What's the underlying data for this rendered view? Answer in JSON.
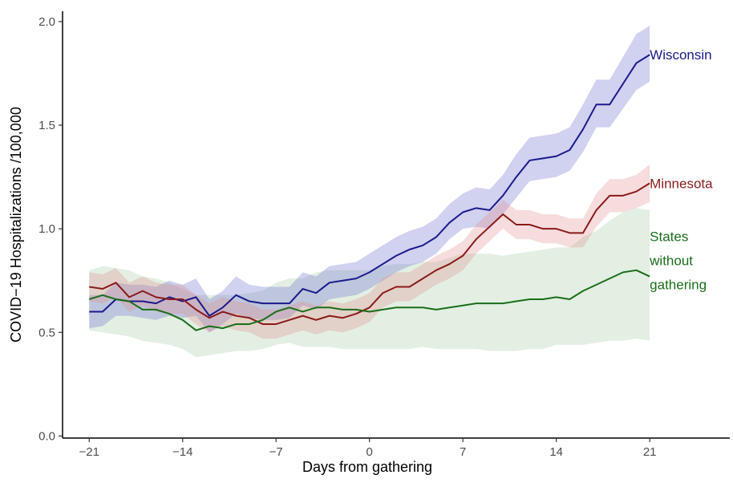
{
  "chart_data": {
    "type": "line",
    "title": "",
    "xlabel": "Days from gathering",
    "ylabel": "COVID−19 Hospitalizations /100,000",
    "xlim": [
      -23,
      27
    ],
    "ylim": [
      -0.01,
      2.05
    ],
    "x_ticks": [
      -21,
      -14,
      -7,
      0,
      7,
      14,
      21
    ],
    "x_tick_labels": [
      "−21",
      "−14",
      "−7",
      "0",
      "7",
      "14",
      "21"
    ],
    "y_ticks": [
      0.0,
      0.5,
      1.0,
      1.5,
      2.0
    ],
    "y_tick_labels": [
      "0.0",
      "0.5",
      "1.0",
      "1.5",
      "2.0"
    ],
    "grid": false,
    "legend": "direct labels at line ends",
    "x": [
      -21,
      -20,
      -19,
      -18,
      -17,
      -16,
      -15,
      -14,
      -13,
      -12,
      -11,
      -10,
      -9,
      -8,
      -7,
      -6,
      -5,
      -4,
      -3,
      -2,
      -1,
      0,
      1,
      2,
      3,
      4,
      5,
      6,
      7,
      8,
      9,
      10,
      11,
      12,
      13,
      14,
      15,
      16,
      17,
      18,
      19,
      20,
      21
    ],
    "series": [
      {
        "name": "Wisconsin",
        "color": "#1a1a8c",
        "band_color": "#6666cc",
        "values": [
          0.6,
          0.6,
          0.66,
          0.65,
          0.65,
          0.64,
          0.67,
          0.65,
          0.67,
          0.58,
          0.62,
          0.68,
          0.65,
          0.64,
          0.64,
          0.64,
          0.71,
          0.69,
          0.74,
          0.75,
          0.76,
          0.79,
          0.83,
          0.87,
          0.9,
          0.92,
          0.96,
          1.03,
          1.08,
          1.1,
          1.09,
          1.16,
          1.25,
          1.33,
          1.34,
          1.35,
          1.38,
          1.48,
          1.6,
          1.6,
          1.7,
          1.8,
          1.84
        ],
        "lower": [
          0.52,
          0.53,
          0.58,
          0.58,
          0.57,
          0.56,
          0.58,
          0.57,
          0.58,
          0.5,
          0.54,
          0.59,
          0.57,
          0.56,
          0.56,
          0.57,
          0.63,
          0.61,
          0.66,
          0.67,
          0.68,
          0.71,
          0.75,
          0.79,
          0.82,
          0.84,
          0.88,
          0.95,
          1.0,
          1.01,
          1.0,
          1.07,
          1.15,
          1.23,
          1.24,
          1.25,
          1.28,
          1.37,
          1.49,
          1.49,
          1.58,
          1.67,
          1.71
        ],
        "upper": [
          0.68,
          0.68,
          0.74,
          0.73,
          0.73,
          0.72,
          0.75,
          0.73,
          0.76,
          0.66,
          0.7,
          0.77,
          0.73,
          0.72,
          0.72,
          0.72,
          0.79,
          0.77,
          0.82,
          0.83,
          0.84,
          0.88,
          0.92,
          0.96,
          0.99,
          1.01,
          1.05,
          1.12,
          1.17,
          1.2,
          1.19,
          1.26,
          1.36,
          1.44,
          1.45,
          1.46,
          1.49,
          1.6,
          1.72,
          1.72,
          1.83,
          1.94,
          1.98
        ]
      },
      {
        "name": "Minnesota",
        "color": "#8b1a1a",
        "band_color": "#e08a8a",
        "values": [
          0.72,
          0.71,
          0.74,
          0.67,
          0.7,
          0.67,
          0.66,
          0.66,
          0.61,
          0.57,
          0.6,
          0.58,
          0.57,
          0.54,
          0.54,
          0.56,
          0.58,
          0.56,
          0.58,
          0.57,
          0.59,
          0.62,
          0.69,
          0.72,
          0.72,
          0.76,
          0.8,
          0.83,
          0.87,
          0.95,
          1.01,
          1.07,
          1.02,
          1.02,
          1.0,
          1.0,
          0.98,
          0.98,
          1.09,
          1.16,
          1.16,
          1.18,
          1.22
        ],
        "lower": [
          0.65,
          0.64,
          0.67,
          0.6,
          0.63,
          0.6,
          0.59,
          0.59,
          0.54,
          0.5,
          0.53,
          0.51,
          0.5,
          0.47,
          0.47,
          0.49,
          0.51,
          0.49,
          0.51,
          0.5,
          0.52,
          0.55,
          0.62,
          0.65,
          0.65,
          0.69,
          0.73,
          0.76,
          0.8,
          0.88,
          0.94,
          1.0,
          0.95,
          0.95,
          0.93,
          0.93,
          0.91,
          0.91,
          1.01,
          1.08,
          1.08,
          1.1,
          1.13
        ],
        "upper": [
          0.79,
          0.78,
          0.81,
          0.74,
          0.77,
          0.74,
          0.73,
          0.73,
          0.68,
          0.64,
          0.67,
          0.65,
          0.64,
          0.61,
          0.61,
          0.63,
          0.65,
          0.63,
          0.65,
          0.64,
          0.66,
          0.69,
          0.76,
          0.79,
          0.79,
          0.83,
          0.87,
          0.9,
          0.94,
          1.02,
          1.08,
          1.14,
          1.09,
          1.09,
          1.07,
          1.07,
          1.05,
          1.05,
          1.17,
          1.24,
          1.24,
          1.26,
          1.31
        ]
      },
      {
        "name": "States without gathering",
        "name_lines": [
          "States",
          "without",
          "gathering"
        ],
        "color": "#1a6e1a",
        "band_color": "#b8d8b8",
        "values": [
          0.66,
          0.68,
          0.66,
          0.65,
          0.61,
          0.61,
          0.59,
          0.56,
          0.51,
          0.53,
          0.52,
          0.54,
          0.54,
          0.56,
          0.6,
          0.62,
          0.6,
          0.62,
          0.62,
          0.61,
          0.61,
          0.6,
          0.61,
          0.62,
          0.62,
          0.62,
          0.61,
          0.62,
          0.63,
          0.64,
          0.64,
          0.64,
          0.65,
          0.66,
          0.66,
          0.67,
          0.66,
          0.7,
          0.73,
          0.76,
          0.79,
          0.8,
          0.77
        ],
        "lower": [
          0.51,
          0.5,
          0.49,
          0.48,
          0.46,
          0.45,
          0.44,
          0.42,
          0.38,
          0.39,
          0.4,
          0.41,
          0.41,
          0.42,
          0.44,
          0.45,
          0.43,
          0.43,
          0.43,
          0.42,
          0.42,
          0.42,
          0.42,
          0.42,
          0.42,
          0.43,
          0.42,
          0.42,
          0.42,
          0.42,
          0.41,
          0.41,
          0.41,
          0.42,
          0.42,
          0.44,
          0.44,
          0.44,
          0.45,
          0.46,
          0.46,
          0.47,
          0.46
        ],
        "upper": [
          0.8,
          0.82,
          0.81,
          0.8,
          0.77,
          0.76,
          0.74,
          0.71,
          0.68,
          0.68,
          0.68,
          0.68,
          0.69,
          0.7,
          0.74,
          0.76,
          0.76,
          0.79,
          0.8,
          0.8,
          0.8,
          0.8,
          0.82,
          0.83,
          0.83,
          0.84,
          0.84,
          0.86,
          0.88,
          0.88,
          0.88,
          0.87,
          0.88,
          0.89,
          0.9,
          0.91,
          0.91,
          0.96,
          0.99,
          1.04,
          1.08,
          1.1,
          1.09
        ]
      }
    ]
  }
}
